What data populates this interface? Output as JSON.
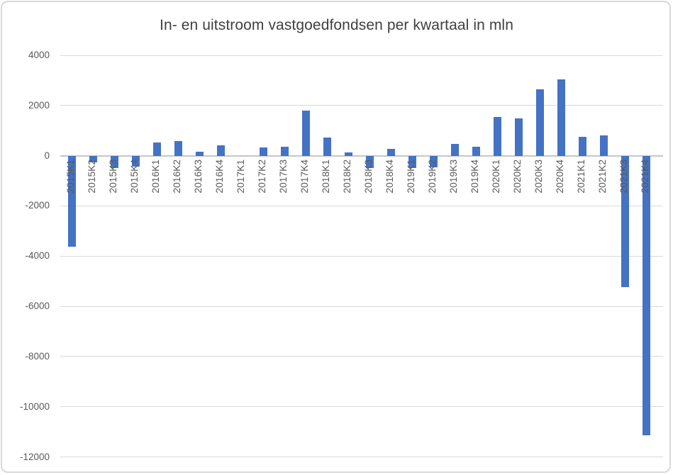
{
  "chart_data": {
    "type": "bar",
    "title": "In- en uitstroom vastgoedfondsen per kwartaal in mln",
    "xlabel": "",
    "ylabel": "",
    "categories": [
      "2015K1",
      "2015K2",
      "2015K3",
      "2015K4",
      "2016K1",
      "2016K2",
      "2016K3",
      "2016K4",
      "2017K1",
      "2017K2",
      "2017K3",
      "2017K4",
      "2018K1",
      "2018K2",
      "2018K3",
      "2018K4",
      "2019K1",
      "2019K2",
      "2019K3",
      "2019K4",
      "2020K1",
      "2020K2",
      "2020K3",
      "2020K4",
      "2021K1",
      "2021K2",
      "2021K3",
      "2021K4"
    ],
    "values": [
      -3620,
      -270,
      -480,
      -430,
      540,
      580,
      170,
      420,
      0,
      320,
      350,
      1810,
      730,
      140,
      -500,
      280,
      -480,
      -450,
      470,
      350,
      1550,
      1500,
      2650,
      3030,
      740,
      800,
      -5240,
      -11140
    ],
    "ylim": [
      -12000,
      4000
    ],
    "ytick_step": 2000,
    "yticks": [
      "4000",
      "2000",
      "0",
      "-2000",
      "-4000",
      "-6000",
      "-8000",
      "-10000",
      "-12000"
    ],
    "ytick_values": [
      4000,
      2000,
      0,
      -2000,
      -4000,
      -6000,
      -8000,
      -10000,
      -12000
    ],
    "grid": true,
    "legend": false,
    "legend_position": "none"
  },
  "colors": {
    "bar": "#4472C4",
    "gridline": "#D9D9D9",
    "zero_line": "#C6C6C6",
    "tick_text": "#595959",
    "title_text": "#404040",
    "border": "#D9D9D9",
    "background": "#FFFFFF"
  }
}
